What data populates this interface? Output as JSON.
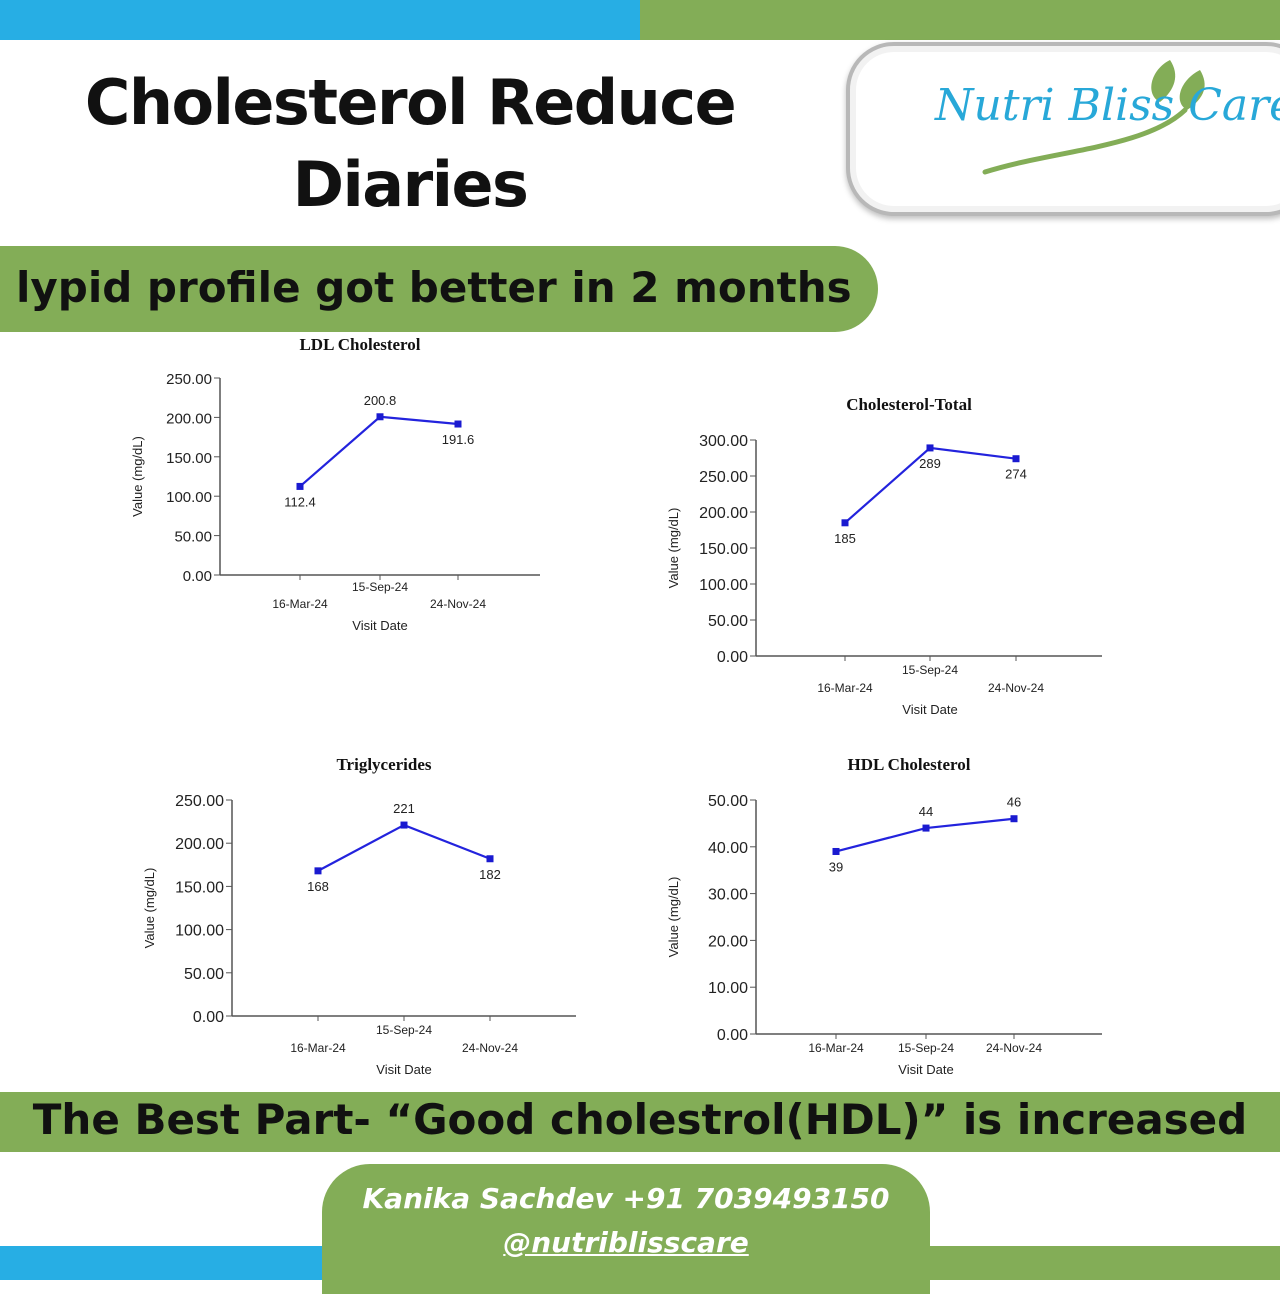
{
  "header": {
    "title_line1": "Cholesterol Reduce",
    "title_line2": "Diaries",
    "logo_text": "Nutri Bliss Care",
    "subtitle": "lypid profile got better in 2 months"
  },
  "colors": {
    "blue_band": "#27aee4",
    "green_band": "#83ad57",
    "series_line": "#2323dd",
    "marker": "#1a1ad0",
    "logo_text": "#28a8d8"
  },
  "chart_data": [
    {
      "type": "line",
      "title": "LDL Cholesterol",
      "xlabel": "Visit Date",
      "ylabel": "Value (mg/dL)",
      "categories": [
        "16-Mar-24",
        "15-Sep-24",
        "24-Nov-24"
      ],
      "values": [
        112.4,
        200.8,
        191.6
      ],
      "point_labels": [
        "112.4",
        "200.8",
        "191.6"
      ],
      "ylim": [
        0,
        250
      ],
      "yticks": [
        "0.00",
        "50.00",
        "100.00",
        "150.00",
        "200.00",
        "250.00"
      ],
      "grid": false,
      "legend": "none"
    },
    {
      "type": "line",
      "title": "Cholesterol-Total",
      "xlabel": "Visit Date",
      "ylabel": "Value (mg/dL)",
      "categories": [
        "16-Mar-24",
        "15-Sep-24",
        "24-Nov-24"
      ],
      "values": [
        185,
        289,
        274
      ],
      "point_labels": [
        "185",
        "289",
        "274"
      ],
      "ylim": [
        0,
        300
      ],
      "yticks": [
        "0.00",
        "50.00",
        "100.00",
        "150.00",
        "200.00",
        "250.00",
        "300.00"
      ],
      "grid": false,
      "legend": "none"
    },
    {
      "type": "line",
      "title": "Triglycerides",
      "xlabel": "Visit Date",
      "ylabel": "Value (mg/dL)",
      "categories": [
        "16-Mar-24",
        "15-Sep-24",
        "24-Nov-24"
      ],
      "values": [
        168,
        221,
        182
      ],
      "point_labels": [
        "168",
        "221",
        "182"
      ],
      "ylim": [
        0,
        250
      ],
      "yticks": [
        "0.00",
        "50.00",
        "100.00",
        "150.00",
        "200.00",
        "250.00"
      ],
      "grid": false,
      "legend": "none"
    },
    {
      "type": "line",
      "title": "HDL Cholesterol",
      "xlabel": "Visit Date",
      "ylabel": "Value (mg/dL)",
      "categories": [
        "16-Mar-24",
        "15-Sep-24",
        "24-Nov-24"
      ],
      "values": [
        39,
        44,
        46
      ],
      "point_labels": [
        "39",
        "44",
        "46"
      ],
      "ylim": [
        0,
        50
      ],
      "yticks": [
        "0.00",
        "10.00",
        "20.00",
        "30.00",
        "40.00",
        "50.00"
      ],
      "grid": false,
      "legend": "none"
    }
  ],
  "footer": {
    "highlight": "The Best Part- “Good cholestrol(HDL)” is increased",
    "contact_name": "Kanika Sachdev +91 7039493150",
    "handle": "@nutriblisscare"
  }
}
